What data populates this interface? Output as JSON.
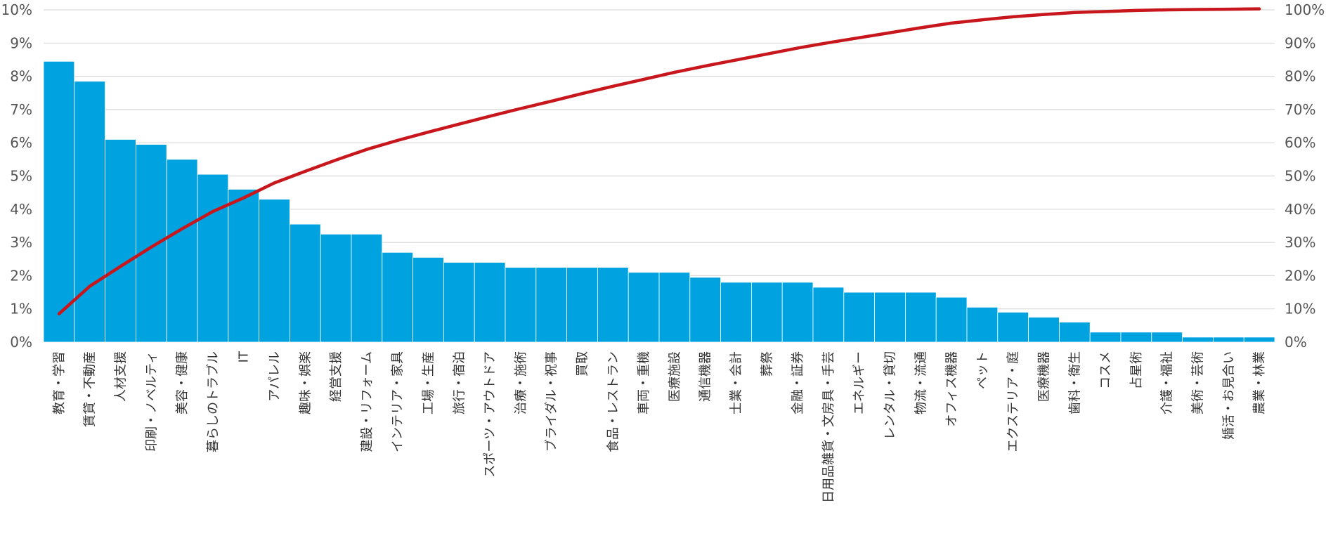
{
  "chart_data": {
    "type": "bar",
    "combo": "pareto",
    "categories": [
      "教育・学習",
      "賃貸・不動産",
      "人材支援",
      "印刷・ノベルティ",
      "美容・健康",
      "暮らしのトラブル",
      "IT",
      "アパレル",
      "趣味・娯楽",
      "経営支援",
      "建設・リフォーム",
      "インテリア・家具",
      "工場・生産",
      "旅行・宿泊",
      "スポーツ・アウトドア",
      "治療・施術",
      "ブライダル・祝事",
      "買取",
      "食品・レストラン",
      "車両・重機",
      "医療施設",
      "通信機器",
      "士業・会計",
      "葬祭",
      "金融・証券",
      "日用品雑貨・文房具・手芸",
      "エネルギー",
      "レンタル・貸切",
      "物流・流通",
      "オフィス機器",
      "ペット",
      "エクステリア・庭",
      "医療機器",
      "歯科・衛生",
      "コスメ",
      "占星術",
      "介護・福祉",
      "美術・芸術",
      "婚活・お見合い",
      "農業・林業"
    ],
    "series": [
      {
        "kind": "bar",
        "axis": "left",
        "color": "#00A3E0",
        "values": [
          8.45,
          7.85,
          6.1,
          5.95,
          5.5,
          5.05,
          4.6,
          4.3,
          3.55,
          3.25,
          3.25,
          2.7,
          2.55,
          2.4,
          2.4,
          2.25,
          2.25,
          2.25,
          2.25,
          2.1,
          2.1,
          1.95,
          1.8,
          1.8,
          1.8,
          1.65,
          1.5,
          1.5,
          1.5,
          1.35,
          1.05,
          0.9,
          0.75,
          0.6,
          0.3,
          0.3,
          0.3,
          0.15,
          0.15,
          0.15
        ]
      },
      {
        "kind": "line",
        "axis": "right",
        "color": "#C8161D",
        "values": [
          8.5,
          16.8,
          22.8,
          28.6,
          34.1,
          39.3,
          43.4,
          47.9,
          51.4,
          54.8,
          58.0,
          60.7,
          63.2,
          65.6,
          68.0,
          70.3,
          72.5,
          74.8,
          77.0,
          79.1,
          81.2,
          83.1,
          84.9,
          86.7,
          88.5,
          90.1,
          91.6,
          93.1,
          94.6,
          96.0,
          97.0,
          97.9,
          98.6,
          99.2,
          99.5,
          99.8,
          100.0,
          100.1,
          100.2,
          100.3
        ]
      }
    ],
    "y_left": {
      "min": 0,
      "max": 10,
      "ticks": [
        "0%",
        "1%",
        "2%",
        "3%",
        "4%",
        "5%",
        "6%",
        "7%",
        "8%",
        "9%",
        "10%"
      ]
    },
    "y_right": {
      "min": 0,
      "max": 100,
      "ticks": [
        "0%",
        "10%",
        "20%",
        "30%",
        "40%",
        "50%",
        "60%",
        "70%",
        "80%",
        "90%",
        "100%"
      ]
    },
    "grid": true,
    "legend": "none",
    "gridline_color": "#D9D9D9"
  }
}
